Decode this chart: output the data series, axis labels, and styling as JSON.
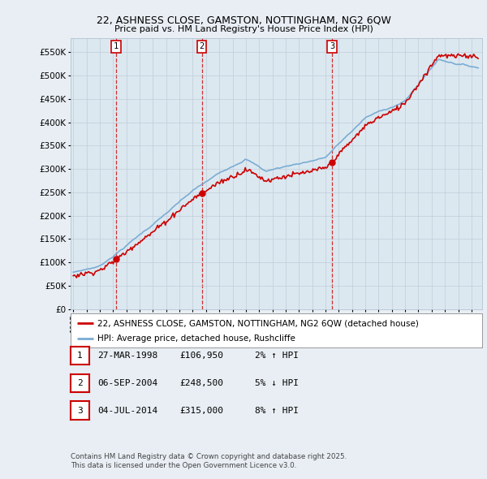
{
  "title1": "22, ASHNESS CLOSE, GAMSTON, NOTTINGHAM, NG2 6QW",
  "title2": "Price paid vs. HM Land Registry's House Price Index (HPI)",
  "yticks": [
    0,
    50000,
    100000,
    150000,
    200000,
    250000,
    300000,
    350000,
    400000,
    450000,
    500000,
    550000
  ],
  "ytick_labels": [
    "£0",
    "£50K",
    "£100K",
    "£150K",
    "£200K",
    "£250K",
    "£300K",
    "£350K",
    "£400K",
    "£450K",
    "£500K",
    "£550K"
  ],
  "xlim_start": 1994.8,
  "xlim_end": 2025.8,
  "ylim_min": 0,
  "ylim_max": 580000,
  "sale_dates": [
    1998.23,
    2004.68,
    2014.5
  ],
  "sale_prices": [
    106950,
    248500,
    315000
  ],
  "sale_labels": [
    "1",
    "2",
    "3"
  ],
  "sale_info": [
    {
      "num": "1",
      "date": "27-MAR-1998",
      "price": "£106,950",
      "pct": "2% ↑ HPI"
    },
    {
      "num": "2",
      "date": "06-SEP-2004",
      "price": "£248,500",
      "pct": "5% ↓ HPI"
    },
    {
      "num": "3",
      "date": "04-JUL-2014",
      "price": "£315,000",
      "pct": "8% ↑ HPI"
    }
  ],
  "legend_line1": "22, ASHNESS CLOSE, GAMSTON, NOTTINGHAM, NG2 6QW (detached house)",
  "legend_line2": "HPI: Average price, detached house, Rushcliffe",
  "footer1": "Contains HM Land Registry data © Crown copyright and database right 2025.",
  "footer2": "This data is licensed under the Open Government Licence v3.0.",
  "line_color_red": "#cc0000",
  "line_color_blue": "#7aadd4",
  "background_color": "#e8eef4",
  "plot_bg_color": "#dce8f0"
}
